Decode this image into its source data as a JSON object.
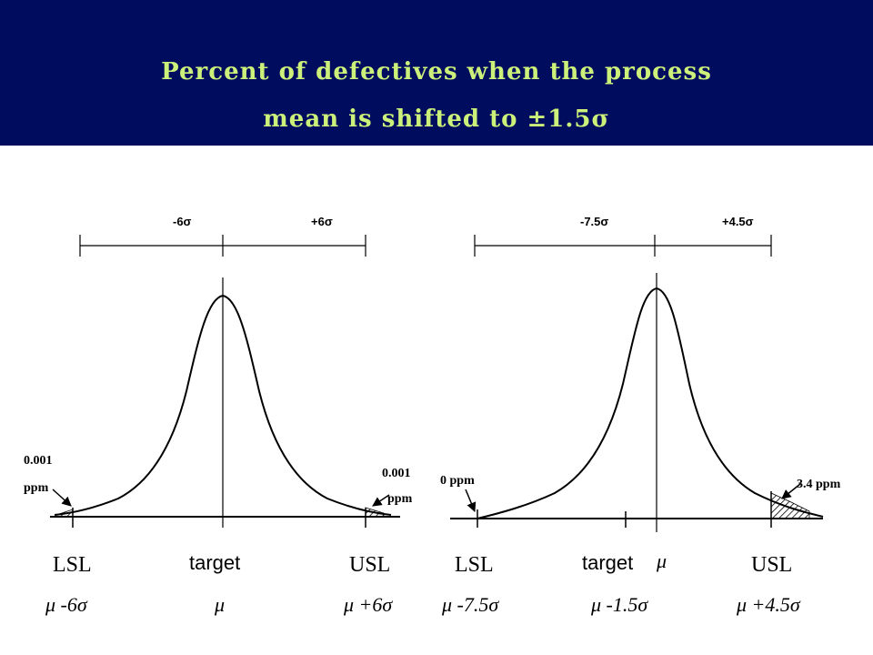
{
  "title": {
    "line1": "Percent of defectives when the process",
    "line2": "mean is shifted to ±1.5σ"
  },
  "left_panel": {
    "span_minus": "-6σ",
    "span_plus": "+6σ",
    "left_tail": "0.001",
    "left_tail_unit": "ppm",
    "right_tail": "0.001",
    "right_tail_unit": "ppm",
    "lsl": "LSL",
    "target": "target",
    "usl": "USL",
    "lsl_value": "μ -6σ",
    "target_value": "μ",
    "usl_value": "μ +6σ"
  },
  "right_panel": {
    "span_minus": "-7.5σ",
    "span_plus": "+4.5σ",
    "left_tail": "0 ppm",
    "right_tail": "3.4 ppm",
    "lsl": "LSL",
    "target": "target",
    "mean_symbol": "μ",
    "usl": "USL",
    "lsl_value": "μ -7.5σ",
    "target_value": "μ -1.5σ",
    "usl_value": "μ +4.5σ"
  },
  "colors": {
    "banner": "#000c5e",
    "title_text": "#ccf07a",
    "ink": "#000000"
  }
}
